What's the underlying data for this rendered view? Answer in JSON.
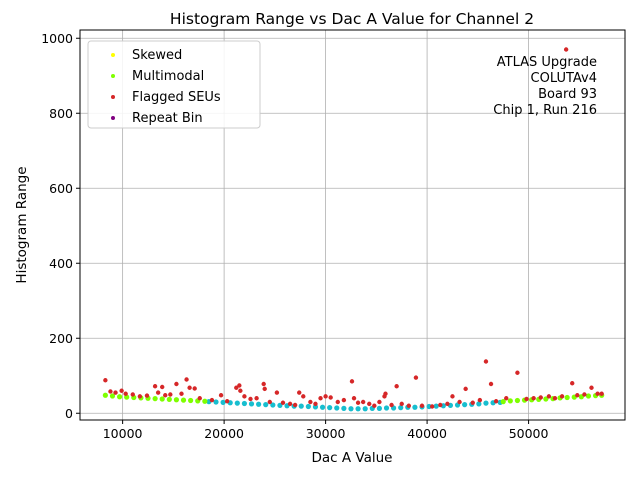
{
  "chart_data": {
    "type": "scatter",
    "title": "Histogram Range vs Dac A Value for Channel 2",
    "xlabel": "Dac A Value",
    "ylabel": "Histogram Range",
    "xlim": [
      5800,
      59500
    ],
    "ylim": [
      -18,
      1022
    ],
    "xticks": [
      10000,
      20000,
      30000,
      40000,
      50000
    ],
    "yticks": [
      0,
      200,
      400,
      600,
      800,
      1000
    ],
    "x_tick_labels": [
      "10000",
      "20000",
      "30000",
      "40000",
      "50000"
    ],
    "y_tick_labels": [
      "0",
      "200",
      "400",
      "600",
      "800",
      "1000"
    ],
    "grid": true,
    "legend_position": "top-left",
    "annotation": [
      "ATLAS Upgrade",
      "COLUTAv4",
      "Board 93",
      "Chip 1, Run 216"
    ],
    "series": [
      {
        "name": "Skewed",
        "color": "#ffff00",
        "points": []
      },
      {
        "name": "Multimodal",
        "color": "#7fff00",
        "points": [
          [
            8300,
            48
          ],
          [
            9000,
            46
          ],
          [
            9700,
            44
          ],
          [
            10400,
            43
          ],
          [
            11100,
            42
          ],
          [
            11800,
            41
          ],
          [
            12500,
            40
          ],
          [
            13200,
            39
          ],
          [
            13900,
            38
          ],
          [
            14600,
            37
          ],
          [
            15300,
            36
          ],
          [
            16000,
            35
          ],
          [
            16700,
            34
          ],
          [
            17400,
            33
          ],
          [
            18100,
            32
          ],
          [
            47500,
            31
          ],
          [
            48200,
            33
          ],
          [
            48900,
            34
          ],
          [
            49600,
            35
          ],
          [
            50300,
            36
          ],
          [
            51000,
            37
          ],
          [
            51700,
            38
          ],
          [
            52400,
            39
          ],
          [
            53100,
            41
          ],
          [
            53800,
            42
          ],
          [
            54500,
            43
          ],
          [
            55200,
            44
          ],
          [
            55900,
            46
          ],
          [
            56600,
            47
          ],
          [
            57200,
            48
          ]
        ]
      },
      {
        "name": "Flagged SEUs",
        "color": "#d62728",
        "points": [
          [
            8300,
            88
          ],
          [
            8800,
            58
          ],
          [
            9300,
            55
          ],
          [
            9900,
            60
          ],
          [
            10300,
            52
          ],
          [
            11000,
            50
          ],
          [
            11700,
            45
          ],
          [
            12400,
            47
          ],
          [
            13200,
            72
          ],
          [
            13500,
            55
          ],
          [
            13900,
            70
          ],
          [
            14200,
            48
          ],
          [
            14700,
            50
          ],
          [
            15300,
            78
          ],
          [
            15800,
            52
          ],
          [
            16300,
            90
          ],
          [
            16600,
            68
          ],
          [
            17100,
            66
          ],
          [
            17600,
            40
          ],
          [
            18800,
            35
          ],
          [
            19700,
            48
          ],
          [
            20300,
            32
          ],
          [
            21200,
            68
          ],
          [
            21500,
            74
          ],
          [
            21600,
            60
          ],
          [
            22000,
            45
          ],
          [
            22600,
            38
          ],
          [
            23200,
            40
          ],
          [
            23900,
            78
          ],
          [
            24000,
            65
          ],
          [
            24500,
            30
          ],
          [
            25200,
            55
          ],
          [
            25800,
            28
          ],
          [
            26500,
            25
          ],
          [
            27000,
            22
          ],
          [
            27400,
            55
          ],
          [
            27800,
            45
          ],
          [
            28500,
            30
          ],
          [
            29000,
            25
          ],
          [
            29500,
            40
          ],
          [
            30000,
            45
          ],
          [
            30500,
            42
          ],
          [
            31200,
            30
          ],
          [
            31800,
            35
          ],
          [
            32600,
            85
          ],
          [
            32800,
            40
          ],
          [
            33200,
            28
          ],
          [
            33700,
            30
          ],
          [
            34300,
            25
          ],
          [
            34800,
            20
          ],
          [
            35300,
            30
          ],
          [
            35800,
            45
          ],
          [
            35900,
            52
          ],
          [
            36500,
            22
          ],
          [
            37000,
            72
          ],
          [
            37500,
            25
          ],
          [
            38200,
            20
          ],
          [
            38900,
            95
          ],
          [
            39500,
            20
          ],
          [
            40500,
            18
          ],
          [
            41300,
            22
          ],
          [
            42000,
            25
          ],
          [
            42500,
            45
          ],
          [
            43200,
            30
          ],
          [
            43800,
            65
          ],
          [
            44500,
            28
          ],
          [
            45200,
            35
          ],
          [
            45800,
            138
          ],
          [
            46300,
            78
          ],
          [
            46800,
            32
          ],
          [
            47800,
            40
          ],
          [
            48900,
            108
          ],
          [
            49800,
            38
          ],
          [
            50500,
            40
          ],
          [
            51200,
            42
          ],
          [
            52000,
            45
          ],
          [
            52600,
            40
          ],
          [
            53300,
            45
          ],
          [
            53700,
            970
          ],
          [
            54300,
            80
          ],
          [
            54800,
            48
          ],
          [
            55500,
            50
          ],
          [
            56200,
            68
          ],
          [
            56800,
            52
          ],
          [
            57200,
            52
          ]
        ]
      },
      {
        "name": "Repeat Bin",
        "color": "#800080",
        "points": []
      },
      {
        "name": "",
        "color": "#17becf",
        "points": [
          [
            18500,
            31
          ],
          [
            19200,
            30
          ],
          [
            19900,
            29
          ],
          [
            20600,
            28
          ],
          [
            21300,
            27
          ],
          [
            22000,
            26
          ],
          [
            22700,
            25
          ],
          [
            23400,
            24
          ],
          [
            24100,
            23
          ],
          [
            24800,
            22
          ],
          [
            25500,
            21
          ],
          [
            26200,
            20
          ],
          [
            26900,
            19
          ],
          [
            27600,
            19
          ],
          [
            28300,
            18
          ],
          [
            29000,
            17
          ],
          [
            29700,
            16
          ],
          [
            30400,
            15
          ],
          [
            31100,
            14
          ],
          [
            31800,
            13
          ],
          [
            32500,
            12
          ],
          [
            33200,
            12
          ],
          [
            33900,
            12
          ],
          [
            34600,
            13
          ],
          [
            35300,
            13
          ],
          [
            36000,
            14
          ],
          [
            36700,
            14
          ],
          [
            37400,
            15
          ],
          [
            38100,
            16
          ],
          [
            38800,
            16
          ],
          [
            39500,
            17
          ],
          [
            40200,
            18
          ],
          [
            40900,
            19
          ],
          [
            41600,
            20
          ],
          [
            42300,
            21
          ],
          [
            43000,
            22
          ],
          [
            43700,
            23
          ],
          [
            44400,
            24
          ],
          [
            45100,
            25
          ],
          [
            45800,
            27
          ],
          [
            46500,
            28
          ],
          [
            47200,
            29
          ]
        ]
      }
    ]
  }
}
